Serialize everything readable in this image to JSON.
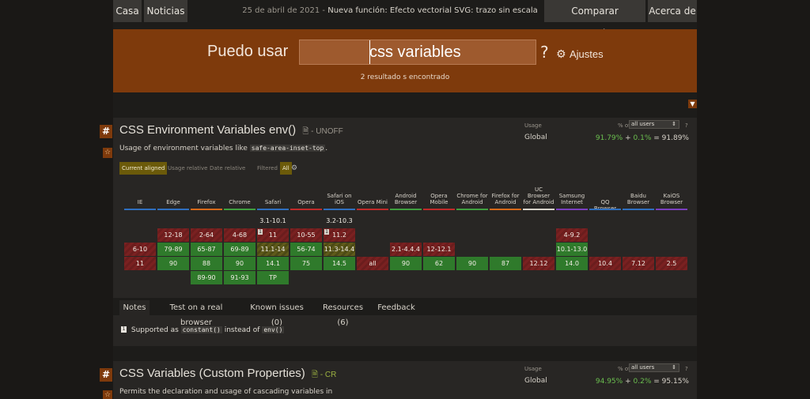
{
  "nav": {
    "home": "Casa",
    "news": "Noticias",
    "date": "25 de abril de 2021",
    "headline": "Nueva función: Efecto vectorial SVG: trazo sin escala",
    "compare": "Comparar navegadores",
    "about": "Acerca de"
  },
  "search": {
    "label": "Puedo usar",
    "value": "css variables",
    "question": "?",
    "settings": "Ajustes",
    "results": "2 resultado s encontrado"
  },
  "feature1": {
    "hash": "#",
    "title": "CSS Environment Variables env()",
    "spec": "- UNOFF",
    "desc_prefix": "Usage of environment variables like",
    "desc_code": "safe-area-inset-top",
    "desc_suffix": ".",
    "usage_label": "Usage",
    "pct_of": "% of",
    "users_select": "all users",
    "help": "?",
    "region": "Global",
    "pct_full": "91.79%",
    "pct_plus": "+",
    "pct_partial": "0.1%",
    "pct_eq": "=",
    "pct_total": "91.89%",
    "toggle_current": "Current aligned",
    "toggle_relative": "Usage relative",
    "toggle_date": "Date relative",
    "toggle_filtered": "Filtered",
    "toggle_all": "All"
  },
  "browsers": [
    {
      "name": "IE",
      "line": "#2f6fbf"
    },
    {
      "name": "Edge",
      "line": "#2f6fbf"
    },
    {
      "name": "Firefox",
      "line": "#d86a1a"
    },
    {
      "name": "Chrome",
      "line": "#3f9f3f"
    },
    {
      "name": "Safari",
      "line": "#2f6fbf"
    },
    {
      "name": "Opera",
      "line": "#c02a2a"
    },
    {
      "name": "Safari on iOS",
      "line": "#2f6fbf"
    },
    {
      "name": "Opera Mini",
      "line": "#c02a2a"
    },
    {
      "name": "Android Browser",
      "line": "#3f9f3f"
    },
    {
      "name": "Opera Mobile",
      "line": "#c02a2a"
    },
    {
      "name": "Chrome for Android",
      "line": "#3f9f3f"
    },
    {
      "name": "Firefox for Android",
      "line": "#d86a1a"
    },
    {
      "name": "UC Browser for Android",
      "line": "#d8d3ca"
    },
    {
      "name": "Samsung Internet",
      "line": "#7a3fbf"
    },
    {
      "name": "QQ Browser",
      "line": "#2f6fbf"
    },
    {
      "name": "Baidu Browser",
      "line": "#2f6fbf"
    },
    {
      "name": "KaiOS Browser",
      "line": "#7a3fbf"
    }
  ],
  "cells": [
    [
      "",
      "",
      "",
      "",
      "",
      "6-10",
      "11",
      ""
    ],
    [
      "",
      "",
      "",
      "",
      "12-18",
      "79-89",
      "90",
      ""
    ],
    [
      "",
      "",
      "",
      "",
      "2-64",
      "65-87",
      "88",
      "89-90"
    ],
    [
      "",
      "",
      "",
      "",
      "4-68",
      "69-89",
      "90",
      "91-93"
    ],
    [
      "",
      "",
      "3.1-10.1",
      "",
      "11",
      "11.1-14",
      "14.1",
      "TP"
    ],
    [
      "",
      "",
      "",
      "",
      "10-55",
      "56-74",
      "75",
      ""
    ],
    [
      "",
      "",
      "3.2-10.3",
      "",
      "11.2",
      "11.3-14.4",
      "14.5",
      ""
    ],
    [
      "",
      "",
      "",
      "",
      "",
      "",
      "all",
      ""
    ],
    [
      "",
      "",
      "",
      "",
      "",
      "2.1-4.4.4",
      "90",
      ""
    ],
    [
      "",
      "",
      "",
      "",
      "",
      "12-12.1",
      "62",
      ""
    ],
    [
      "",
      "",
      "",
      "",
      "",
      "",
      "90",
      ""
    ],
    [
      "",
      "",
      "",
      "",
      "",
      "",
      "87",
      ""
    ],
    [
      "",
      "",
      "",
      "",
      "",
      "",
      "12.12",
      ""
    ],
    [
      "",
      "",
      "",
      "",
      "4-9.2",
      "10.1-13.0",
      "14.0",
      ""
    ],
    [
      "",
      "",
      "",
      "",
      "",
      "",
      "10.4",
      ""
    ],
    [
      "",
      "",
      "",
      "",
      "",
      "",
      "7.12",
      ""
    ],
    [
      "",
      "",
      "",
      "",
      "",
      "",
      "2.5",
      ""
    ]
  ],
  "tabs": {
    "notes": "Notes",
    "test": "Test on a real browser",
    "issues": "Known issues (0)",
    "resources": "Resources (6)",
    "feedback": "Feedback"
  },
  "note": {
    "num": "1",
    "prefix": "Supported as",
    "code1": "constant()",
    "mid": "instead of",
    "code2": "env()"
  },
  "feature2": {
    "hash": "#",
    "title": "CSS Variables (Custom Properties)",
    "spec": "- CR",
    "desc": "Permits the declaration and usage of cascading variables in",
    "usage_label": "Usage",
    "pct_of": "% of",
    "users_select": "all users",
    "help": "?",
    "region": "Global",
    "pct_full": "94.95%",
    "pct_plus": "+",
    "pct_partial": "0.2%",
    "pct_eq": "=",
    "pct_total": "95.15%"
  },
  "colors": {
    "brand": "#7e3a0c",
    "supported": "#2f7a2b",
    "unsupported": "#6b1d1d",
    "partial": "#5f5a1a"
  }
}
